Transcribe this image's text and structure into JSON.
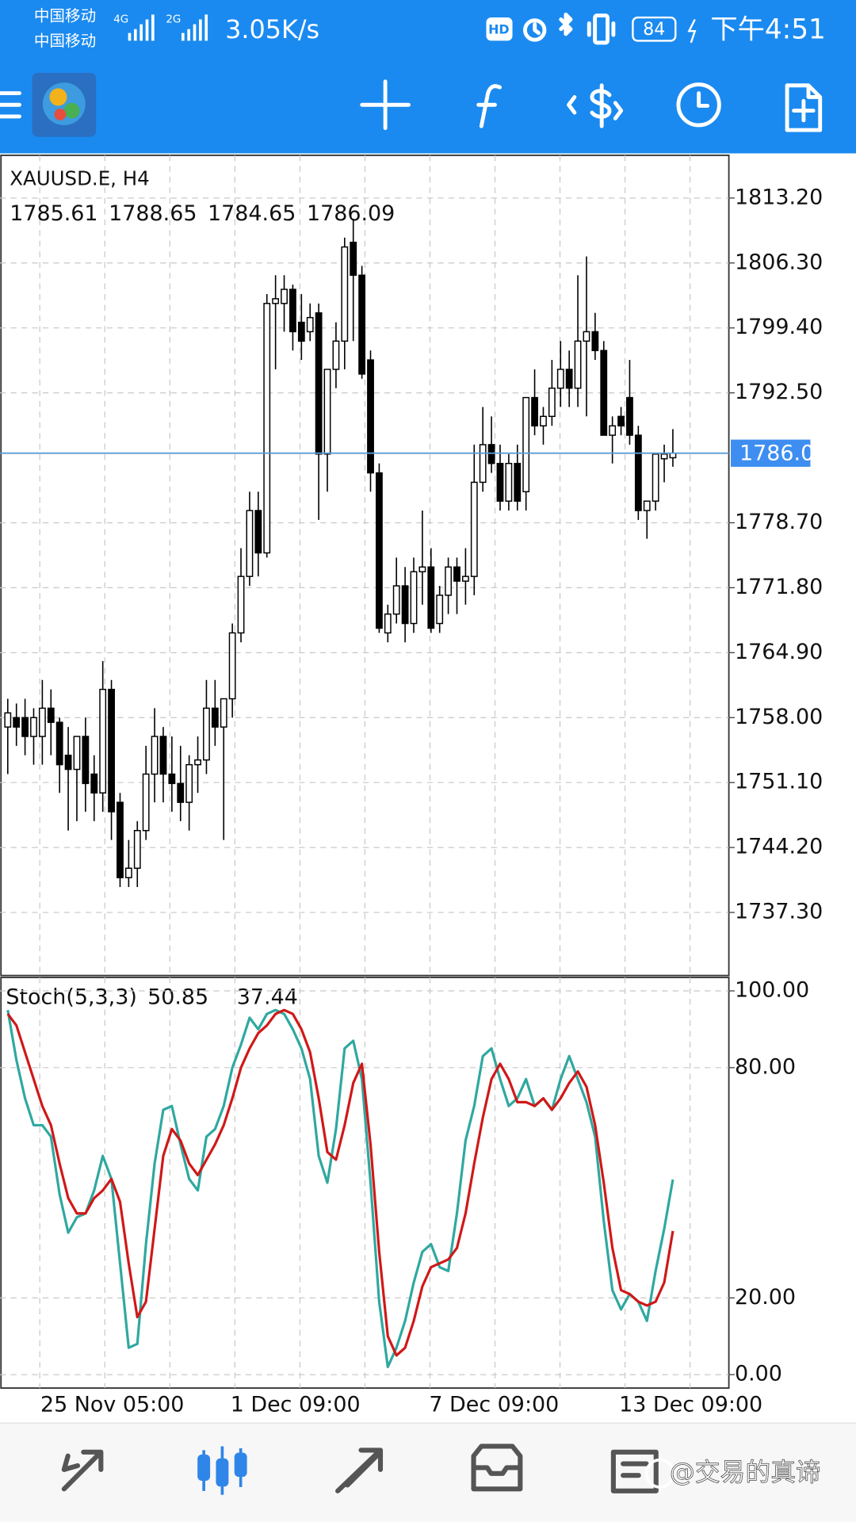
{
  "status_bar": {
    "carrier_1": "中国移动",
    "carrier_2": "中国移动",
    "network_1": "4G",
    "network_2": "2G",
    "speed": "3.05K/s",
    "hd": "HD",
    "battery": "84",
    "time": "下午4:51"
  },
  "chart_data": [
    {
      "type": "candlestick",
      "title": "XAUUSD.E, H4",
      "open": [
        1757,
        1758,
        1758,
        1756,
        1756,
        1759,
        1757.5,
        1754,
        1752.5,
        1756,
        1752,
        1750,
        1761,
        1749,
        1741,
        1742,
        1746,
        1752,
        1756,
        1752,
        1751,
        1749,
        1753,
        1753.5,
        1759,
        1757,
        1760,
        1767,
        1773,
        1780,
        1775.5,
        1802,
        1802,
        1803.5,
        1800,
        1799,
        1801,
        1786,
        1795,
        1798,
        1808.5,
        1805,
        1796,
        1784,
        1767,
        1769,
        1772,
        1768,
        1773.5,
        1774,
        1768,
        1771,
        1774,
        1772.5,
        1773,
        1783,
        1787,
        1785,
        1781,
        1785,
        1782,
        1792,
        1789,
        1790,
        1793,
        1795,
        1793,
        1798,
        1799,
        1797,
        1788,
        1790,
        1792,
        1788,
        1780,
        1781,
        1785.5,
        1785.61
      ],
      "high": [
        1760,
        1759.5,
        1760,
        1759,
        1762,
        1761,
        1758,
        1757,
        1756,
        1758,
        1754,
        1764,
        1762,
        1750,
        1745,
        1747,
        1755,
        1759,
        1757,
        1756,
        1755,
        1754,
        1756,
        1762,
        1762,
        1760,
        1768,
        1776,
        1782,
        1782,
        1803,
        1805,
        1805,
        1804,
        1803,
        1802,
        1802,
        1795,
        1800,
        1809,
        1811,
        1806,
        1797,
        1785,
        1770,
        1775,
        1774,
        1775,
        1780,
        1776,
        1772,
        1775,
        1775,
        1776,
        1787,
        1791,
        1790,
        1787,
        1786,
        1787,
        1792,
        1795,
        1791,
        1796,
        1798,
        1797,
        1805,
        1807,
        1801,
        1798,
        1790,
        1791,
        1796,
        1789,
        1781,
        1786,
        1787,
        1788.65
      ],
      "low": [
        1752,
        1755,
        1754,
        1753,
        1753,
        1754,
        1750,
        1746,
        1747,
        1748,
        1747,
        1748,
        1745,
        1740,
        1740,
        1740,
        1745,
        1749,
        1749,
        1748,
        1747,
        1746,
        1750,
        1752,
        1755,
        1745,
        1758,
        1766,
        1772,
        1773,
        1775,
        1795,
        1799,
        1797,
        1796,
        1798,
        1779,
        1782,
        1793,
        1795,
        1798,
        1794,
        1782,
        1767,
        1766,
        1768,
        1766,
        1767,
        1770,
        1767,
        1767,
        1769,
        1769,
        1770,
        1771,
        1782,
        1784,
        1780,
        1780,
        1780,
        1780,
        1788,
        1787,
        1789,
        1791,
        1791,
        1791,
        1790,
        1796,
        1788,
        1785,
        1788,
        1787,
        1779,
        1777,
        1780,
        1783,
        1784.65
      ],
      "close": [
        1758.5,
        1757,
        1756,
        1758,
        1759,
        1757.5,
        1753,
        1752.5,
        1756,
        1751,
        1750,
        1761,
        1748,
        1741,
        1742,
        1746,
        1752,
        1756,
        1752,
        1751,
        1749,
        1753,
        1753.5,
        1759,
        1757,
        1760,
        1767,
        1773,
        1780,
        1775.5,
        1802,
        1802.5,
        1803.5,
        1799,
        1798,
        1800.5,
        1786,
        1795,
        1798,
        1808,
        1805,
        1794.5,
        1784,
        1767.5,
        1769,
        1772,
        1768,
        1773.5,
        1774,
        1767.5,
        1771,
        1774,
        1772.5,
        1773,
        1783,
        1787,
        1785,
        1781,
        1785,
        1781,
        1792,
        1789,
        1790,
        1793,
        1795,
        1793,
        1798,
        1799,
        1797,
        1788,
        1789,
        1789,
        1788,
        1780,
        1781,
        1786,
        1786,
        1786.09
      ],
      "ylim": [
        1730.6,
        1817.74
      ],
      "yticks": [
        {
          "value": 1813.2,
          "label": "1813.20"
        },
        {
          "value": 1806.3,
          "label": "1806.30"
        },
        {
          "value": 1799.4,
          "label": "1799.40"
        },
        {
          "value": 1792.5,
          "label": "1792.50"
        },
        {
          "value": 1778.7,
          "label": "1778.70"
        },
        {
          "value": 1771.8,
          "label": "1771.80"
        },
        {
          "value": 1764.9,
          "label": "1764.90"
        },
        {
          "value": 1758,
          "label": "1758.00"
        },
        {
          "value": 1751.1,
          "label": "1751.10"
        },
        {
          "value": 1744.2,
          "label": "1744.20"
        },
        {
          "value": 1737.3,
          "label": "1737.30"
        }
      ],
      "grid": true,
      "up_color": "#ffffff",
      "down_color": "#000000",
      "price_line_color": "#5b9bd5"
    },
    {
      "type": "line",
      "title": "Stoch(5,3,3)",
      "categories": [
        null,
        null,
        null,
        null,
        "25 Nov 05:00",
        null,
        null,
        null,
        null,
        null,
        null,
        null,
        null,
        null,
        null,
        null,
        null,
        null,
        null,
        null,
        null,
        null,
        null,
        null,
        null,
        null,
        "1 Dec 09:00",
        null,
        null,
        null,
        null,
        null,
        null,
        null,
        null,
        null,
        null,
        null,
        null,
        null,
        null,
        null,
        null,
        null,
        null,
        null,
        null,
        null,
        null,
        "7 Dec 09:00",
        null,
        null,
        null,
        null,
        null,
        null,
        null,
        null,
        null,
        null,
        null,
        null,
        null,
        null,
        null,
        null,
        null,
        null,
        null,
        null,
        null,
        "13 Dec 09:00",
        null,
        null,
        null,
        null,
        null,
        null
      ],
      "series": [
        {
          "color": "#2fa8a0",
          "values": [
            95,
            82,
            72,
            65,
            65,
            62,
            47,
            37,
            41,
            42,
            48,
            57,
            51,
            29,
            7,
            8,
            34,
            55,
            69,
            70,
            60,
            51,
            48,
            62,
            64,
            70,
            80,
            86,
            93,
            90,
            94,
            95,
            94,
            90,
            85,
            77,
            57,
            50,
            64,
            85,
            87,
            77,
            50,
            19,
            2,
            7,
            14,
            24,
            32,
            34,
            28,
            27,
            42,
            61,
            70,
            83,
            85,
            77,
            70,
            72,
            77,
            70,
            72,
            69,
            77,
            83,
            77,
            71,
            62,
            40,
            22,
            17,
            21,
            19,
            14,
            27,
            38,
            50.85
          ]
        },
        {
          "color": "#d01818",
          "values": [
            94,
            91,
            84,
            77,
            70,
            65,
            55,
            46,
            42,
            42,
            46,
            48,
            51,
            45,
            29,
            15,
            19,
            38,
            57,
            64,
            61,
            55,
            52,
            56,
            60,
            65,
            72,
            80,
            85,
            89,
            91,
            94,
            95,
            94,
            90,
            84,
            72,
            58,
            56,
            65,
            76,
            81,
            60,
            32,
            10,
            5,
            7,
            14,
            23,
            28,
            29,
            30,
            33,
            42,
            55,
            67,
            77,
            81,
            77,
            71,
            71,
            70,
            72,
            69,
            72,
            76,
            79,
            75,
            65,
            50,
            33,
            22,
            21,
            19,
            18,
            19,
            24,
            37.44
          ]
        }
      ],
      "ylim": [
        -3.5,
        103.5
      ],
      "yticks": [
        {
          "value": 100,
          "label": "100.00"
        },
        {
          "value": 80,
          "label": "80.00"
        },
        {
          "value": 20,
          "label": "20.00"
        },
        {
          "value": 0,
          "label": "0.00"
        }
      ],
      "grid": true
    }
  ],
  "watermark": "@交易的真谛"
}
